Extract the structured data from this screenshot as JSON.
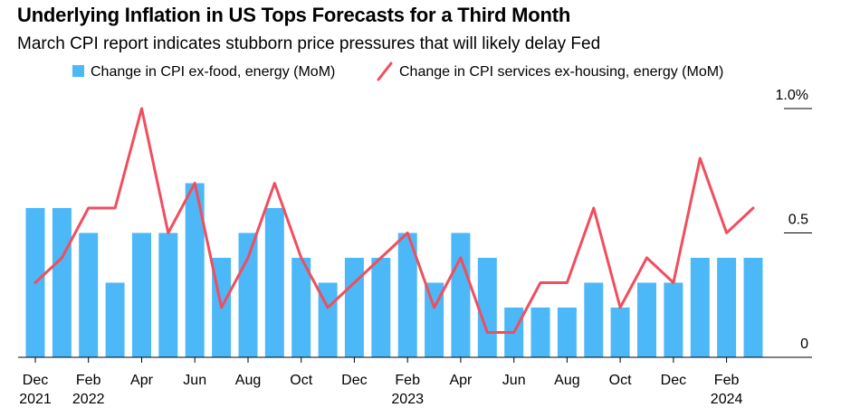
{
  "header": {
    "title": "Underlying Inflation in US Tops Forecasts for a Third Month",
    "subtitle": "March CPI report indicates stubborn price pressures that will likely delay Fed"
  },
  "colors": {
    "bar": "#4cb8f8",
    "line": "#f04e5e",
    "axis": "#000000",
    "text": "#000000"
  },
  "chart_data": {
    "type": "bar",
    "legend_placement": "top",
    "grid": false,
    "ylim": [
      0,
      1.0
    ],
    "y_ticks": [
      {
        "value": 1.0,
        "label": "1.0%"
      },
      {
        "value": 0.5,
        "label": "0.5"
      },
      {
        "value": 0,
        "label": "0"
      }
    ],
    "x_ticks": [
      {
        "index": 0,
        "label": "Dec",
        "year": "2021"
      },
      {
        "index": 2,
        "label": "Feb",
        "year": "2022"
      },
      {
        "index": 4,
        "label": "Apr",
        "year": ""
      },
      {
        "index": 6,
        "label": "Jun",
        "year": ""
      },
      {
        "index": 8,
        "label": "Aug",
        "year": ""
      },
      {
        "index": 10,
        "label": "Oct",
        "year": ""
      },
      {
        "index": 12,
        "label": "Dec",
        "year": ""
      },
      {
        "index": 14,
        "label": "Feb",
        "year": "2023"
      },
      {
        "index": 16,
        "label": "Apr",
        "year": ""
      },
      {
        "index": 18,
        "label": "Jun",
        "year": ""
      },
      {
        "index": 20,
        "label": "Aug",
        "year": ""
      },
      {
        "index": 22,
        "label": "Oct",
        "year": ""
      },
      {
        "index": 24,
        "label": "Dec",
        "year": ""
      },
      {
        "index": 26,
        "label": "Feb",
        "year": "2024"
      }
    ],
    "categories": [
      "Dec 2021",
      "Jan 2022",
      "Feb 2022",
      "Mar 2022",
      "Apr 2022",
      "May 2022",
      "Jun 2022",
      "Jul 2022",
      "Aug 2022",
      "Sep 2022",
      "Oct 2022",
      "Nov 2022",
      "Dec 2022",
      "Jan 2023",
      "Feb 2023",
      "Mar 2023",
      "Apr 2023",
      "May 2023",
      "Jun 2023",
      "Jul 2023",
      "Aug 2023",
      "Sep 2023",
      "Oct 2023",
      "Nov 2023",
      "Dec 2023",
      "Jan 2024",
      "Feb 2024",
      "Mar 2024"
    ],
    "series": [
      {
        "name": "Change in CPI ex-food, energy (MoM)",
        "type": "bar",
        "values": [
          0.6,
          0.6,
          0.5,
          0.3,
          0.5,
          0.5,
          0.7,
          0.4,
          0.5,
          0.6,
          0.4,
          0.3,
          0.4,
          0.4,
          0.5,
          0.3,
          0.5,
          0.4,
          0.2,
          0.2,
          0.2,
          0.3,
          0.2,
          0.3,
          0.3,
          0.4,
          0.4,
          0.4
        ]
      },
      {
        "name": "Change in CPI services ex-housing, energy (MoM)",
        "type": "line",
        "values": [
          0.3,
          0.4,
          0.6,
          0.6,
          1.0,
          0.5,
          0.7,
          0.2,
          0.4,
          0.7,
          0.4,
          0.2,
          0.3,
          0.4,
          0.5,
          0.2,
          0.4,
          0.1,
          0.1,
          0.3,
          0.3,
          0.6,
          0.2,
          0.4,
          0.3,
          0.8,
          0.5,
          0.6
        ]
      }
    ]
  }
}
